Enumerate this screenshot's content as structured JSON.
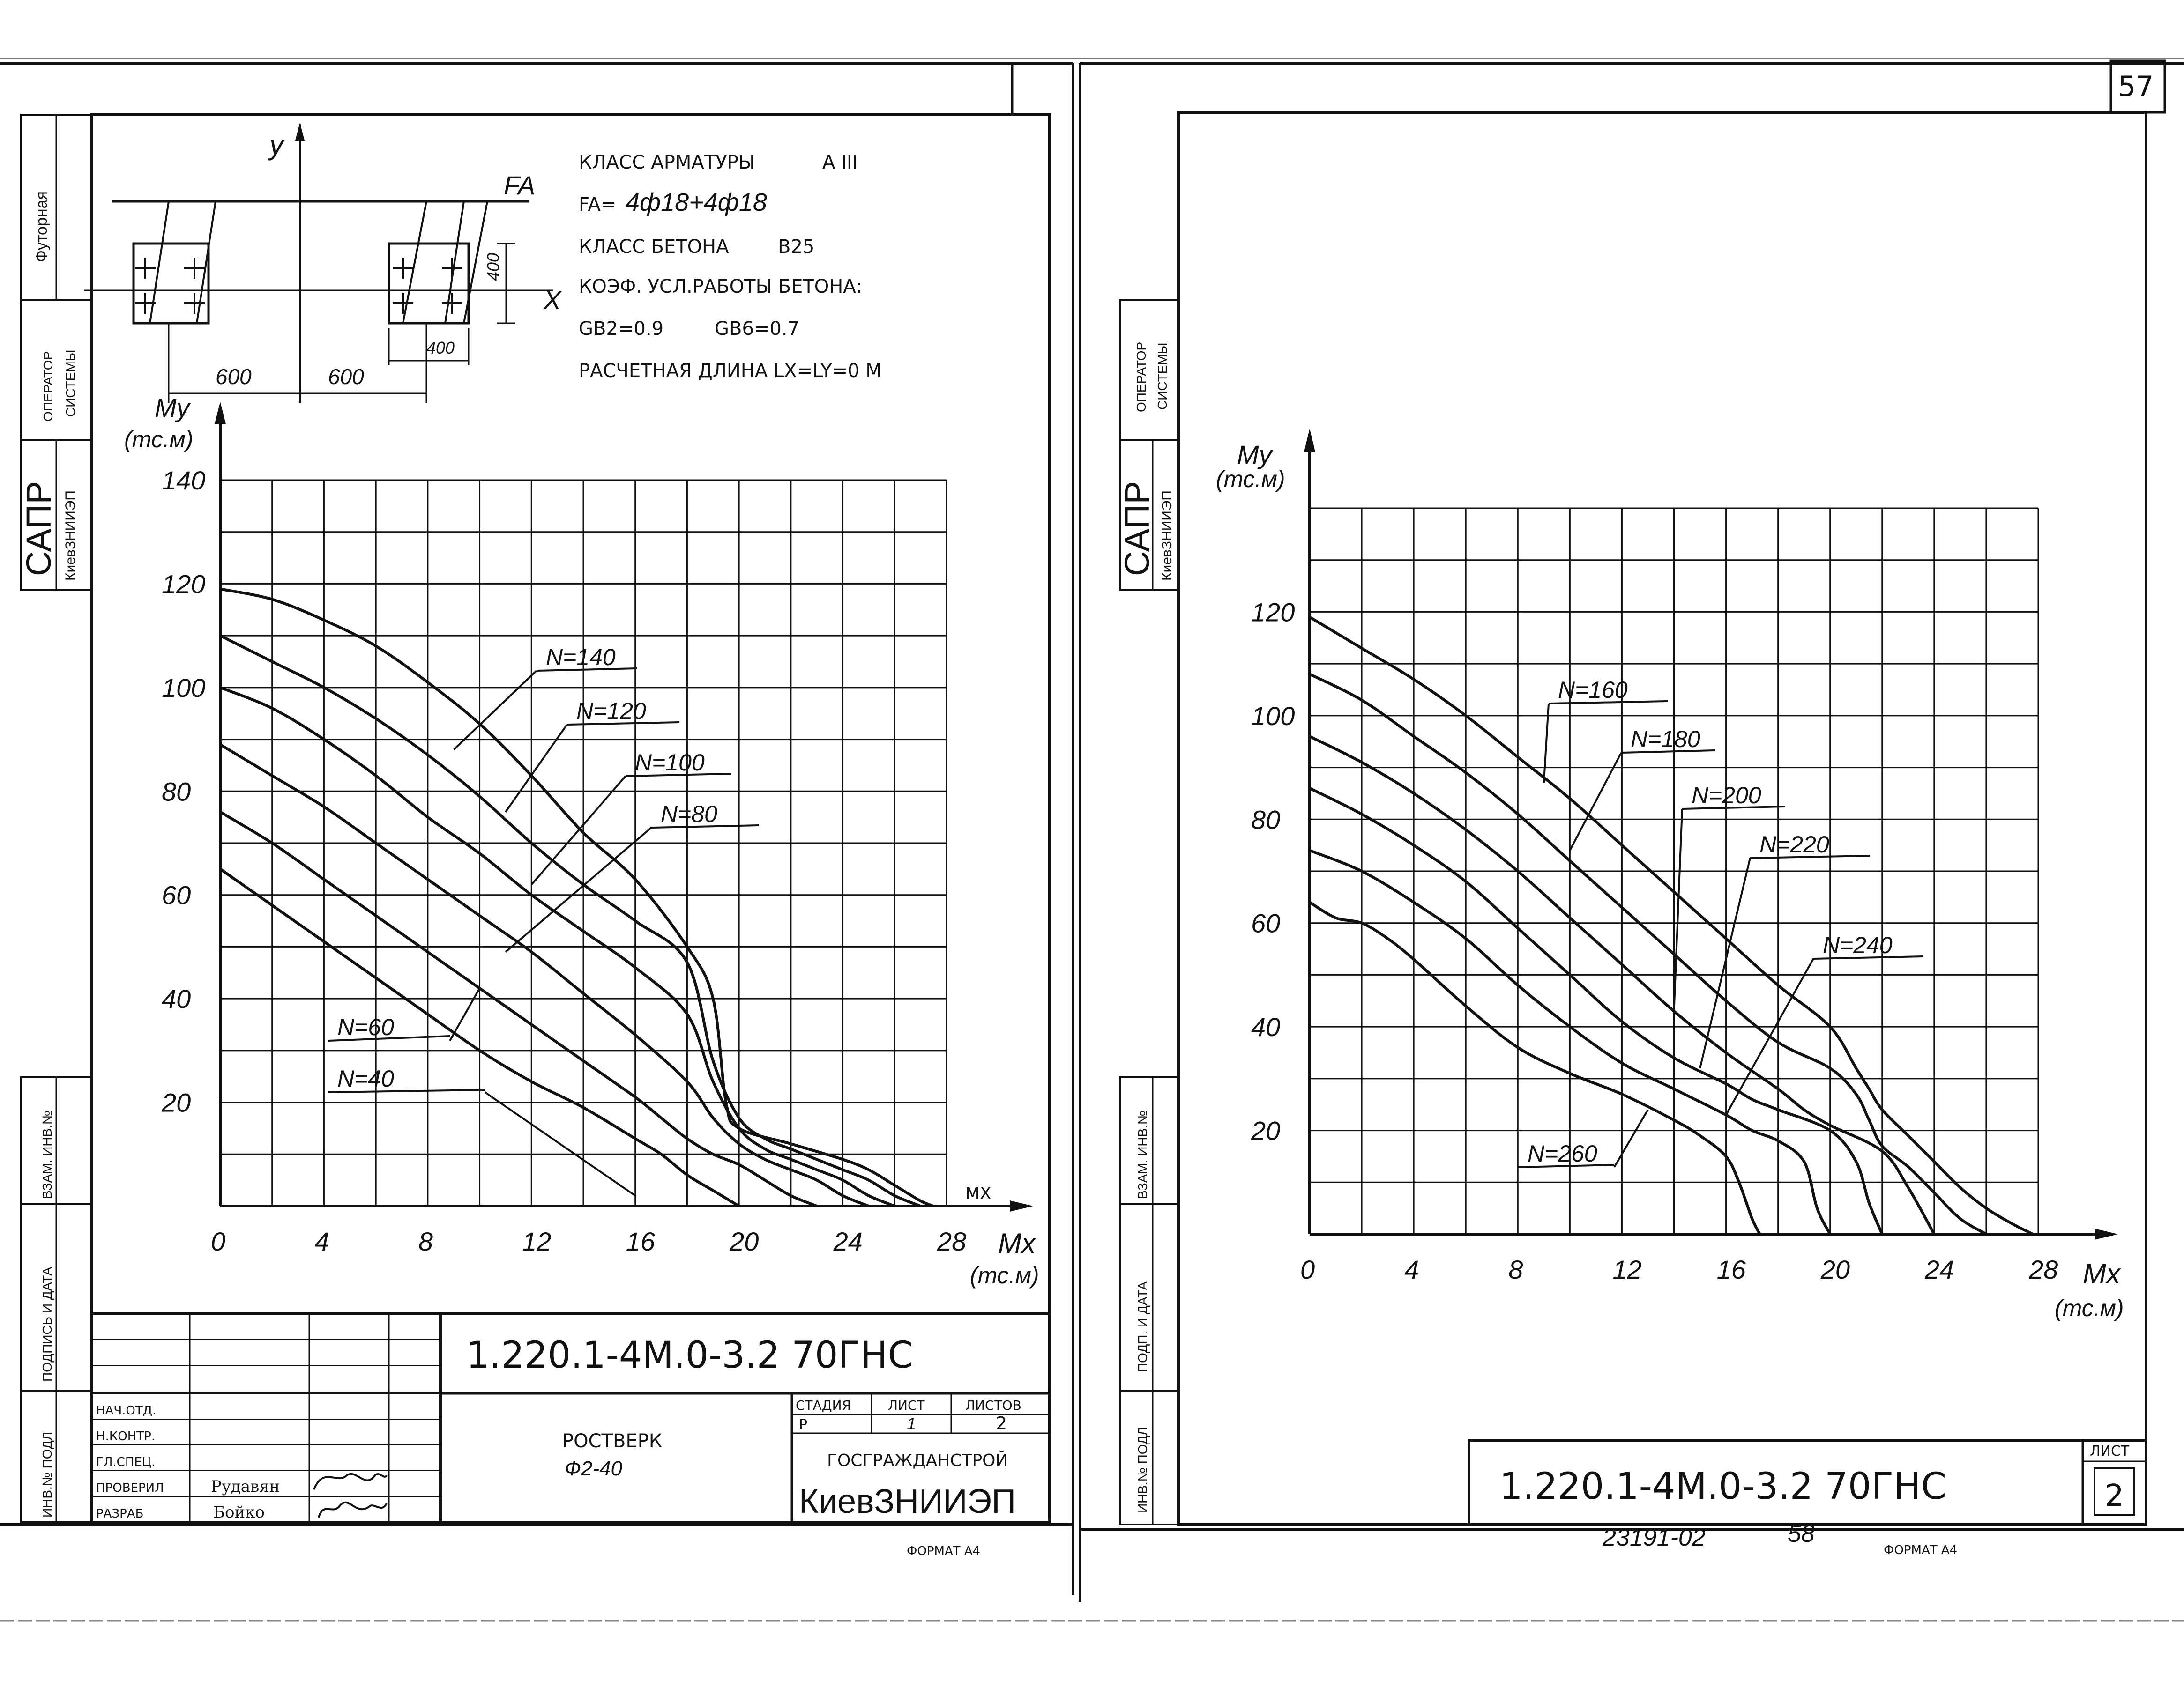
{
  "page_number": "57",
  "sheet_codes": {
    "document_code": "1.220.1-4M.0-3.2 70ГНС",
    "archive_number": "23191-02",
    "archive_page": "58",
    "format_label": "ФОРМАТ А4"
  },
  "left_sheet": {
    "side_stamp": {
      "sapr": "САПР",
      "institute": "КиевЗНИИЭП",
      "operator_line1": "ОПЕРАТОР",
      "operator_line2": "СИСТЕМЫ",
      "futor": "Футорная",
      "box1": "ВЗАМ. ИНВ.№",
      "box2": "ПОДПИСЬ И ДАТА",
      "box3": "ИНВ.№ ПОДЛ"
    },
    "section": {
      "y_axis": "y",
      "x_axis": "X",
      "force_label": "FA",
      "dim_400a": "400",
      "dim_400b": "400",
      "dim_600a": "600",
      "dim_600b": "600"
    },
    "specs": {
      "reinf_class_label": "КЛАСС АРМАТУРЫ",
      "reinf_class_value": "А III",
      "fa_label": "FA=",
      "fa_value": "4ф18+4ф18",
      "concrete_class_label": "КЛАСС БЕТОНА",
      "concrete_class_value": "B25",
      "coef_label": "КОЭФ. УСЛ.РАБОТЫ БЕТОНА:",
      "gb2": "GB2=0.9",
      "gb6": "GB6=0.7",
      "length_label": "РАСЧЕТНАЯ ДЛИНА LX=LY=0 М"
    },
    "title_block": {
      "code": "1.220.1-4М.0-3.2 70ГНС",
      "object_line1": "РОСТВЕРК",
      "object_line2": "Ф2-40",
      "stage_label": "СТАДИЯ",
      "sheet_label": "ЛИСТ",
      "sheets_label": "ЛИСТОВ",
      "stage_value": "Р",
      "sheet_value": "1",
      "sheets_value": "2",
      "org_line1": "ГОСГРАЖДАНСТРОЙ",
      "org_line2": "КиевЗНИИЭП",
      "roles": [
        "НАЧ.ОТД.",
        "Н.КОНТР.",
        "ГЛ.СПЕЦ.",
        "ПРОВЕРИЛ",
        "РАЗРАБ"
      ],
      "names": [
        "",
        "",
        "",
        "Рудавян",
        "Бойко"
      ]
    },
    "format_label": "ФОРМАТ А4"
  },
  "right_sheet": {
    "side_stamp": {
      "sapr": "САПР",
      "institute": "КиевЗНИИЭП",
      "operator_line1": "ОПЕРАТОР",
      "operator_line2": "СИСТЕМЫ",
      "box1": "ВЗАМ. ИНВ.№",
      "box2": "ПОДП. И ДАТА",
      "box3": "ИНВ.№ ПОДЛ"
    },
    "title_block": {
      "code": "1.220.1-4М.0-3.2 70ГНС",
      "sheet_label": "ЛИСТ",
      "sheet_value": "2"
    },
    "archive_number": "23191-02",
    "archive_page": "58",
    "format_label": "ФОРМАТ А4"
  },
  "chart_data": [
    {
      "type": "line",
      "title": "",
      "xlabel": "Mx",
      "xunit": "(тс.м)",
      "xlabel_end": "МХ",
      "ylabel": "My",
      "yunit": "(тс.м)",
      "xlim": [
        0,
        28
      ],
      "ylim": [
        0,
        140
      ],
      "grid": true,
      "xticks": [
        0,
        4,
        8,
        12,
        16,
        20,
        24,
        28
      ],
      "yticks": [
        20,
        40,
        60,
        80,
        100,
        120,
        140
      ],
      "series": [
        {
          "name": "N=40",
          "x": [
            0,
            2,
            4,
            6,
            8,
            10,
            12,
            14,
            16,
            17,
            18,
            19,
            20
          ],
          "y": [
            65,
            58,
            51,
            44,
            37,
            30,
            24,
            19,
            13,
            10,
            6,
            3,
            0
          ]
        },
        {
          "name": "N=60",
          "x": [
            0,
            2,
            4,
            6,
            8,
            10,
            12,
            14,
            16,
            17,
            18,
            19,
            20,
            21,
            22,
            23
          ],
          "y": [
            76,
            70,
            63,
            56,
            49,
            42,
            35,
            28,
            21,
            17,
            13,
            10,
            8,
            5,
            2,
            0
          ]
        },
        {
          "name": "N=80",
          "x": [
            0,
            2,
            4,
            6,
            8,
            10,
            12,
            14,
            16,
            18,
            19,
            20,
            21,
            22,
            23,
            24,
            25
          ],
          "y": [
            89,
            83,
            77,
            70,
            63,
            56,
            49,
            41,
            33,
            24,
            17,
            12,
            9,
            7,
            5,
            2,
            0
          ]
        },
        {
          "name": "N=100",
          "x": [
            0,
            2,
            4,
            6,
            8,
            10,
            12,
            14,
            16,
            18,
            19,
            20,
            21,
            22,
            23,
            24,
            25,
            26
          ],
          "y": [
            100,
            96,
            90,
            83,
            75,
            68,
            60,
            53,
            46,
            37,
            24,
            15,
            11,
            9,
            7,
            5,
            2,
            0
          ]
        },
        {
          "name": "N=120",
          "x": [
            0,
            2,
            4,
            6,
            8,
            10,
            12,
            14,
            16,
            18,
            19,
            20,
            21,
            22,
            23,
            24,
            25,
            26,
            27
          ],
          "y": [
            110,
            105,
            100,
            94,
            87,
            79,
            70,
            62,
            55,
            47,
            28,
            17,
            13,
            11,
            9,
            7,
            5,
            2,
            0
          ]
        },
        {
          "name": "N=140",
          "x": [
            0,
            2,
            4,
            6,
            8,
            10,
            12,
            14,
            16,
            18,
            19,
            19.5,
            20,
            22,
            24,
            25,
            26,
            27,
            27.5
          ],
          "y": [
            119,
            117,
            113,
            108,
            101,
            93,
            83,
            72,
            63,
            50,
            40,
            20,
            15,
            12,
            9,
            7,
            4,
            1,
            0
          ]
        }
      ]
    },
    {
      "type": "line",
      "title": "",
      "xlabel": "Mx",
      "xunit": "(тс.м)",
      "ylabel": "My",
      "yunit": "(тс.м)",
      "xlim": [
        0,
        28
      ],
      "ylim": [
        0,
        140
      ],
      "grid": true,
      "xticks": [
        0,
        4,
        8,
        12,
        16,
        20,
        24,
        28
      ],
      "yticks": [
        20,
        40,
        60,
        80,
        100,
        120
      ],
      "series": [
        {
          "name": "N=160",
          "x": [
            0,
            2,
            4,
            6,
            8,
            10,
            12,
            14,
            16,
            18,
            20,
            21,
            21.5,
            22,
            23,
            24,
            25,
            26,
            27,
            27.8
          ],
          "y": [
            119,
            113,
            107,
            100,
            92,
            84,
            75,
            66,
            57,
            48,
            40,
            32,
            28,
            24,
            19,
            14,
            9,
            5,
            2,
            0
          ]
        },
        {
          "name": "N=180",
          "x": [
            0,
            2,
            4,
            6,
            8,
            10,
            12,
            14,
            16,
            18,
            20,
            21,
            21.5,
            22,
            23,
            24,
            25,
            26
          ],
          "y": [
            108,
            103,
            96,
            89,
            81,
            72,
            63,
            54,
            45,
            37,
            32,
            27,
            22,
            17,
            13,
            8,
            3,
            0
          ]
        },
        {
          "name": "N=200",
          "x": [
            0,
            2,
            4,
            6,
            8,
            10,
            12,
            14,
            16,
            18,
            19,
            20,
            22,
            23,
            24
          ],
          "y": [
            96,
            91,
            85,
            78,
            70,
            61,
            52,
            43,
            35,
            28,
            24,
            21,
            16,
            9,
            0
          ]
        },
        {
          "name": "N=220",
          "x": [
            0,
            2,
            4,
            6,
            8,
            10,
            12,
            14,
            16,
            17,
            18,
            20,
            21,
            21.5,
            22
          ],
          "y": [
            86,
            81,
            75,
            68,
            59,
            50,
            41,
            34,
            29,
            26,
            24,
            20,
            14,
            6,
            0
          ]
        },
        {
          "name": "N=240",
          "x": [
            0,
            2,
            4,
            6,
            8,
            10,
            12,
            14,
            16,
            17,
            18,
            19,
            19.5,
            20
          ],
          "y": [
            74,
            70,
            64,
            57,
            48,
            40,
            33,
            28,
            23,
            20,
            18,
            14,
            5,
            0
          ]
        },
        {
          "name": "N=260",
          "x": [
            0,
            1,
            2,
            3,
            4,
            6,
            8,
            10,
            12,
            14,
            15,
            16,
            16.5,
            17,
            17.3
          ],
          "y": [
            64,
            61,
            60,
            57,
            53,
            44,
            36,
            31,
            27,
            22,
            19,
            15,
            10,
            3,
            0
          ]
        }
      ]
    }
  ]
}
